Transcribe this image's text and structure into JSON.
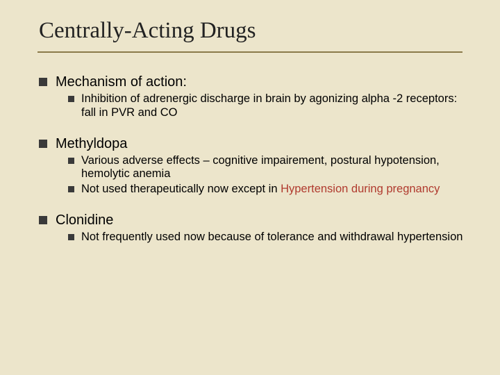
{
  "colors": {
    "background": "#ece5cb",
    "text": "#000000",
    "bullet": "#3a3a3a",
    "underline": "#8a7a4a",
    "highlight": "#b03a2e"
  },
  "typography": {
    "title_font": "Times New Roman",
    "title_size_pt": 33,
    "body_font": "Arial",
    "l1_size_pt": 20,
    "l2_size_pt": 16.5
  },
  "title": "Centrally-Acting Drugs",
  "sections": [
    {
      "heading": "Mechanism of action:",
      "items": [
        {
          "plain": "Inhibition of adrenergic discharge in brain by agonizing alpha -2 receptors:  fall in PVR and CO"
        }
      ]
    },
    {
      "heading": "Methyldopa",
      "items": [
        {
          "plain": "Various adverse effects – cognitive impairement, postural hypotension, hemolytic anemia"
        },
        {
          "pre": "Not used therapeutically now except in ",
          "highlight": "Hypertension during pregnancy"
        }
      ]
    },
    {
      "heading": "Clonidine",
      "items": [
        {
          "plain": "Not frequently used now because of tolerance and withdrawal hypertension"
        }
      ]
    }
  ]
}
